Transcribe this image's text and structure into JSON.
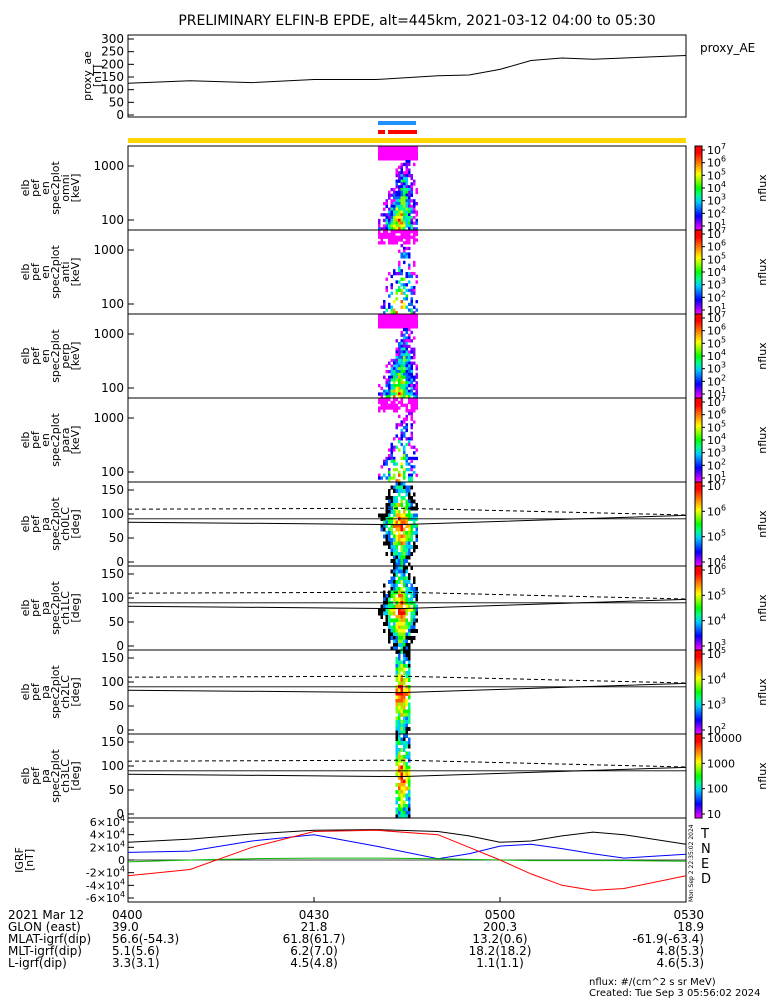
{
  "title": "PRELIMINARY ELFIN-B EPDE, alt=445km, 2021-03-12 04:00 to 05:30",
  "chart_data": [
    {
      "type": "line",
      "name": "proxy_ae",
      "ylabel": [
        "proxy_ae",
        "[nT]"
      ],
      "legend": "proxy_AE",
      "ylim": [
        0,
        300
      ],
      "yticks": [
        "0",
        "50",
        "100",
        "150",
        "200",
        "250",
        "300"
      ],
      "x_minutes": [
        0,
        10,
        20,
        30,
        40,
        50,
        55,
        60,
        65,
        70,
        75,
        80,
        90
      ],
      "values": [
        125,
        135,
        128,
        140,
        140,
        155,
        158,
        180,
        215,
        225,
        220,
        225,
        235
      ]
    },
    {
      "type": "heatmap",
      "panels": [
        {
          "ylabel": [
            "elb",
            "pef",
            "en",
            "spec2plot",
            "omni",
            "[keV]"
          ],
          "yticks": [
            "100",
            "1000"
          ],
          "cbar_ticks": [
            "10^1",
            "10^2",
            "10^3",
            "10^4",
            "10^5",
            "10^6",
            "10^7"
          ],
          "cbar_label": "nflux"
        },
        {
          "ylabel": [
            "elb",
            "pef",
            "en",
            "spec2plot",
            "anti",
            "[keV]"
          ],
          "yticks": [
            "100",
            "1000"
          ],
          "cbar_ticks": [
            "10^1",
            "10^2",
            "10^3",
            "10^4",
            "10^5",
            "10^6",
            "10^7"
          ],
          "cbar_label": "nflux"
        },
        {
          "ylabel": [
            "elb",
            "pef",
            "en",
            "spec2plot",
            "perp",
            "[keV]"
          ],
          "yticks": [
            "100",
            "1000"
          ],
          "cbar_ticks": [
            "10^1",
            "10^2",
            "10^3",
            "10^4",
            "10^5",
            "10^6",
            "10^7"
          ],
          "cbar_label": "nflux"
        },
        {
          "ylabel": [
            "elb",
            "pef",
            "en",
            "spec2plot",
            "para",
            "[keV]"
          ],
          "yticks": [
            "100",
            "1000"
          ],
          "cbar_ticks": [
            "10^1",
            "10^2",
            "10^3",
            "10^4",
            "10^5",
            "10^6",
            "10^7"
          ],
          "cbar_label": "nflux"
        },
        {
          "ylabel": [
            "elb",
            "pef",
            "pa",
            "spec2plot",
            "ch0LC",
            "[deg]"
          ],
          "yticks": [
            "0",
            "50",
            "100",
            "150"
          ],
          "cbar_ticks": [
            "10^4",
            "10^5",
            "10^6",
            "10^7"
          ],
          "cbar_label": "nflux"
        },
        {
          "ylabel": [
            "elb",
            "pef",
            "pa",
            "spec2plot",
            "ch1LC",
            "[deg]"
          ],
          "yticks": [
            "0",
            "50",
            "100",
            "150"
          ],
          "cbar_ticks": [
            "10^3",
            "10^4",
            "10^5",
            "10^6"
          ],
          "cbar_label": "nflux"
        },
        {
          "ylabel": [
            "elb",
            "pef",
            "pa",
            "spec2plot",
            "ch2LC",
            "[deg]"
          ],
          "yticks": [
            "0",
            "50",
            "100",
            "150"
          ],
          "cbar_ticks": [
            "10^2",
            "10^3",
            "10^4",
            "10^5"
          ],
          "cbar_label": "nflux"
        },
        {
          "ylabel": [
            "elb",
            "pef",
            "pa",
            "spec2plot",
            "ch3LC",
            "[deg]"
          ],
          "yticks": [
            "0",
            "50",
            "100",
            "150"
          ],
          "cbar_ticks": [
            "10",
            "100",
            "1000",
            "10000"
          ],
          "cbar_label": "nflux"
        }
      ]
    },
    {
      "type": "line",
      "name": "IGRF",
      "ylabel": [
        "IGRF",
        "[nT]"
      ],
      "ylim": [
        -60000,
        60000
      ],
      "yticks": [
        "-6×10^4",
        "-4×10^4",
        "-2×10^4",
        "0",
        "2×10^4",
        "4×10^4",
        "6×10^4"
      ],
      "x_minutes": [
        0,
        10,
        20,
        30,
        40,
        50,
        55,
        60,
        65,
        70,
        75,
        80,
        90
      ],
      "series": [
        {
          "name": "T",
          "color": "#000000",
          "values": [
            28000,
            33000,
            41000,
            47000,
            48000,
            45000,
            38000,
            28000,
            30000,
            38000,
            44000,
            40000,
            25000
          ]
        },
        {
          "name": "N",
          "color": "#0000ff",
          "values": [
            12000,
            14000,
            30000,
            40000,
            22000,
            2000,
            10000,
            22000,
            25000,
            18000,
            10000,
            3000,
            9000
          ]
        },
        {
          "name": "E",
          "color": "#00bb00",
          "values": [
            -3000,
            0,
            2000,
            3000,
            3000,
            2000,
            1000,
            0,
            -1000,
            -1000,
            -1000,
            -1000,
            -2000
          ]
        },
        {
          "name": "D",
          "color": "#ff0000",
          "values": [
            -25000,
            -15000,
            20000,
            45000,
            47000,
            40000,
            20000,
            0,
            -22000,
            -40000,
            -48000,
            -45000,
            -25000
          ]
        }
      ],
      "side_label": "Mon Sep  2 22:35:02 2024"
    }
  ],
  "time_axis": {
    "labels": [
      "2021 Mar 12",
      "GLON (east)",
      "MLAT-igrf(dip)",
      "MLT-igrf(dip)",
      "L-igrf(dip)"
    ],
    "ticks": [
      {
        "time": "0400",
        "glon": "39.0",
        "mlat": "56.6(-54.3)",
        "mlt": "5.1(5.6)",
        "l": "3.3(3.1)"
      },
      {
        "time": "0430",
        "glon": "21.8",
        "mlat": "61.8(61.7)",
        "mlt": "6.2(7.0)",
        "l": "4.5(4.8)"
      },
      {
        "time": "0500",
        "glon": "200.3",
        "mlat": "13.2(0.6)",
        "mlt": "18.2(18.2)",
        "l": "1.1(1.1)"
      },
      {
        "time": "0530",
        "glon": "18.9",
        "mlat": "-61.9(-63.4)",
        "mlt": "4.8(5.3)",
        "l": "4.6(5.3)"
      }
    ]
  },
  "footer": {
    "units": "nflux: #/(cm^2 s sr MeV)",
    "created": "Created: Tue Sep  3 05:56:02 2024"
  }
}
